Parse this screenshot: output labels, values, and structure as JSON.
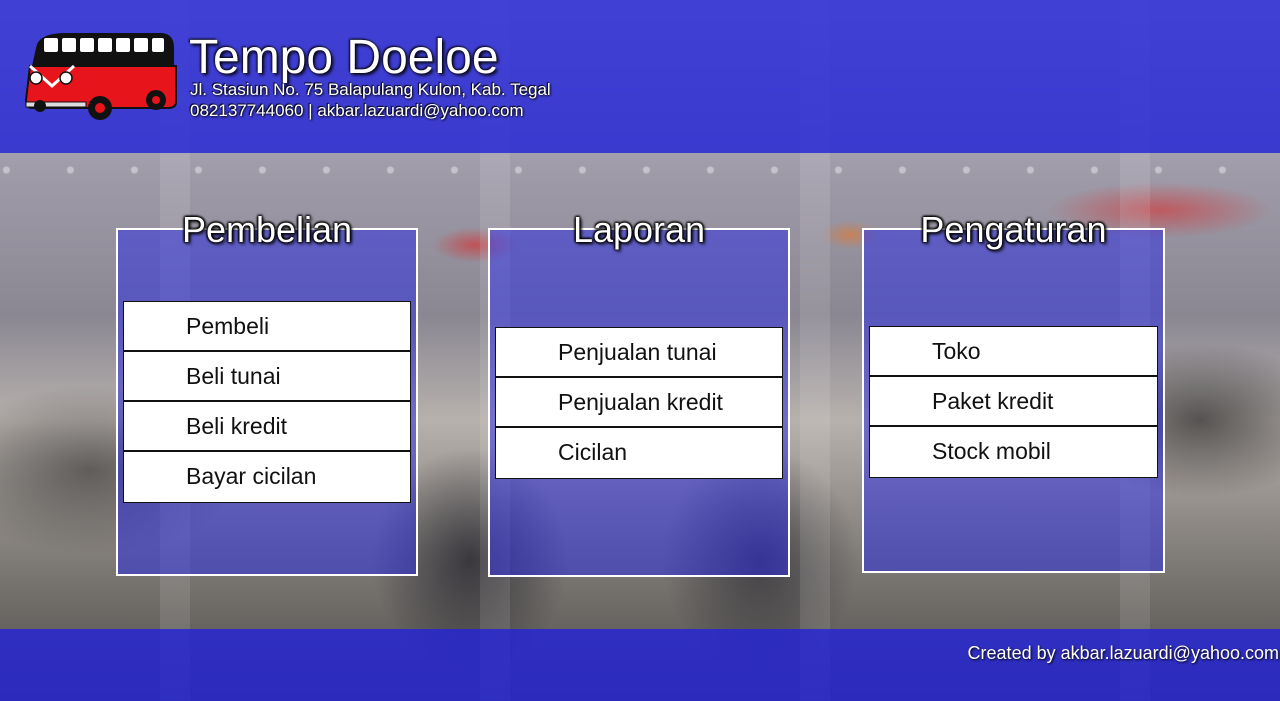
{
  "header": {
    "title": "Tempo Doeloe",
    "address": "Jl. Stasiun No. 75 Balapulang Kulon, Kab. Tegal",
    "contact": "082137744060 | akbar.lazuardi@yahoo.com",
    "logo_icon": "van-icon"
  },
  "panels": [
    {
      "title": "Pembelian",
      "items": [
        "Pembeli",
        "Beli tunai",
        "Beli kredit",
        "Bayar cicilan"
      ]
    },
    {
      "title": "Laporan",
      "items": [
        "Penjualan tunai",
        "Penjualan kredit",
        "Cicilan"
      ]
    },
    {
      "title": "Pengaturan",
      "items": [
        "Toko",
        "Paket kredit",
        "Stock mobil"
      ]
    }
  ],
  "footer": {
    "credit": "Created by akbar.lazuardi@yahoo.com"
  },
  "colors": {
    "overlay_blue": "#2323d7",
    "panel_border": "#ffffff",
    "menu_bg": "#ffffff",
    "van_red": "#e8141c"
  }
}
